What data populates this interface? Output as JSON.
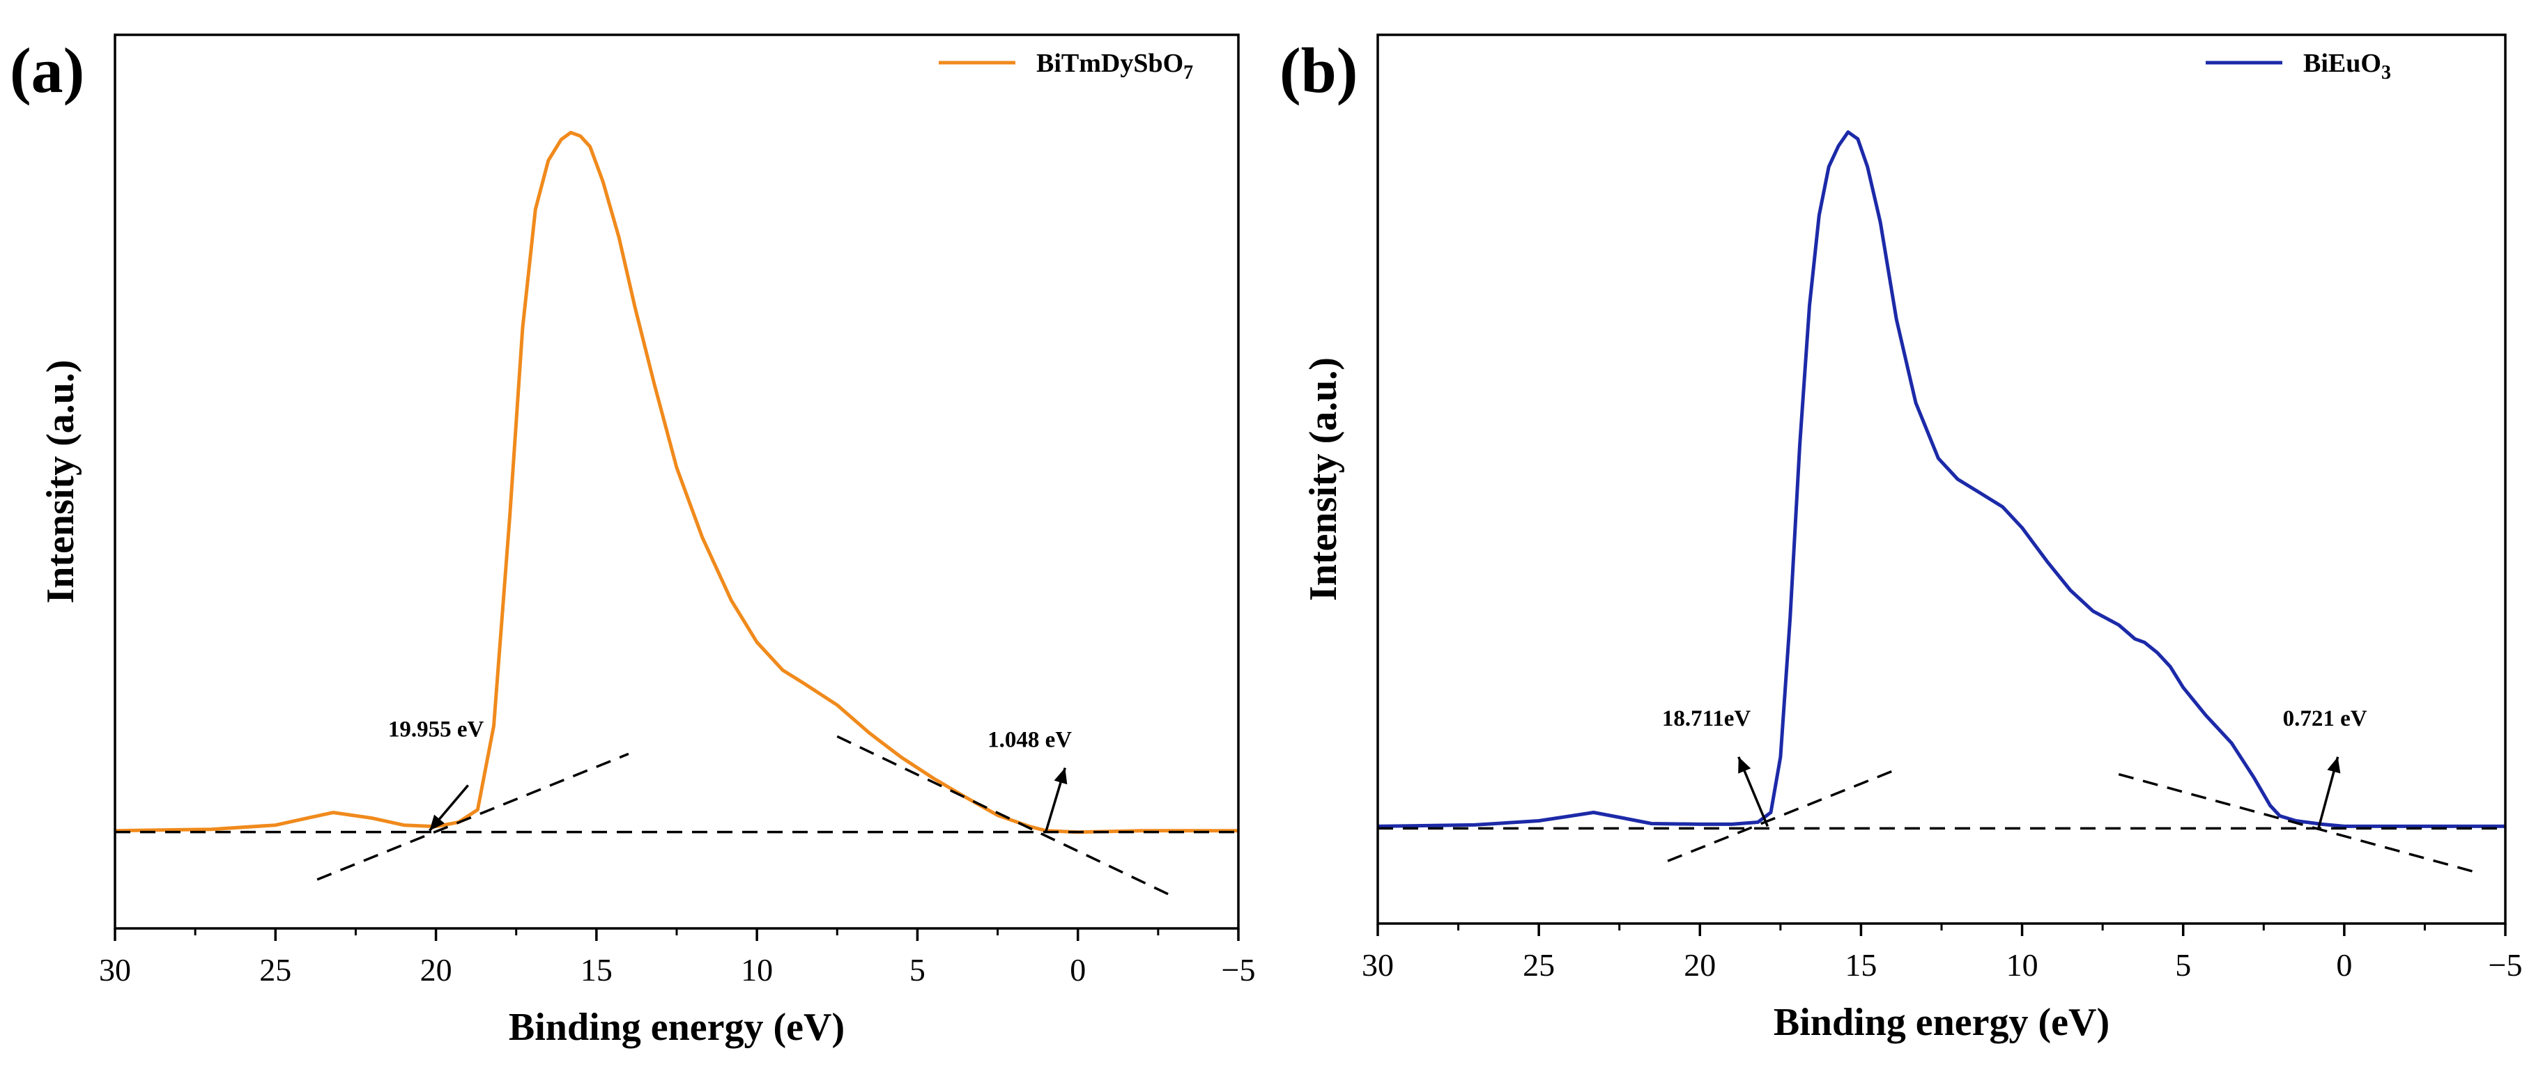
{
  "chart_data": [
    {
      "type": "line",
      "panel_label": "(a)",
      "xlabel": "Binding energy (eV)",
      "ylabel": "Intensity (a.u.)",
      "xlim": [
        30,
        -5
      ],
      "ylim": [
        -0.14,
        1.14
      ],
      "x_ticks": [
        30,
        25,
        20,
        15,
        10,
        5,
        0,
        -5
      ],
      "x_tick_labels": [
        "30",
        "25",
        "20",
        "15",
        "10",
        "5",
        "0",
        "−5"
      ],
      "legend": {
        "label": "BiTmDySbO",
        "subscript": "7",
        "position": "top-right"
      },
      "series": [
        {
          "name": "BiTmDySbO7",
          "color": "#f08a1c",
          "x": [
            30,
            27,
            25,
            24,
            23.2,
            22,
            21,
            20,
            19.3,
            18.7,
            18.2,
            17.7,
            17.3,
            16.9,
            16.5,
            16.1,
            15.8,
            15.5,
            15.2,
            14.8,
            14.3,
            13.8,
            13.2,
            12.5,
            11.7,
            10.8,
            10,
            9.2,
            8.5,
            7.5,
            6.5,
            5.5,
            4.5,
            3.5,
            2.5,
            1.5,
            1,
            0,
            -2,
            -5
          ],
          "y": [
            0.0,
            0.002,
            0.008,
            0.018,
            0.026,
            0.018,
            0.008,
            0.006,
            0.012,
            0.03,
            0.15,
            0.45,
            0.72,
            0.89,
            0.96,
            0.99,
            1.0,
            0.995,
            0.98,
            0.93,
            0.85,
            0.75,
            0.64,
            0.52,
            0.42,
            0.33,
            0.27,
            0.23,
            0.21,
            0.18,
            0.14,
            0.105,
            0.075,
            0.048,
            0.022,
            0.006,
            0.0,
            -0.002,
            0.0,
            0.0
          ]
        }
      ],
      "tangents": [
        {
          "from": [
            23.7,
            -0.07
          ],
          "to": [
            14,
            0.11
          ]
        },
        {
          "from": [
            7.5,
            0.135
          ],
          "to": [
            -3,
            -0.095
          ]
        },
        {
          "from": [
            30,
            -0.002
          ],
          "to": [
            -5,
            -0.002
          ]
        }
      ],
      "annotations": [
        {
          "text": "19.955 eV",
          "label_at": [
            20,
            0.135
          ],
          "arrow_from": [
            19,
            0.065
          ],
          "arrow_to": [
            20.2,
            0.0
          ]
        },
        {
          "text": "1.048 eV",
          "label_at": [
            1.5,
            0.12
          ],
          "arrow_from": [
            1.0,
            -0.002
          ],
          "arrow_to": [
            0.4,
            0.09
          ]
        }
      ]
    },
    {
      "type": "line",
      "panel_label": "(b)",
      "xlabel": "Binding energy (eV)",
      "ylabel": "Intensity (a.u.)",
      "xlim": [
        30,
        -5
      ],
      "ylim": [
        -0.14,
        1.14
      ],
      "x_ticks": [
        30,
        25,
        20,
        15,
        10,
        5,
        0,
        -5
      ],
      "x_tick_labels": [
        "30",
        "25",
        "20",
        "15",
        "10",
        "5",
        "0",
        "−5"
      ],
      "legend": {
        "label": "BiEuO",
        "subscript": "3",
        "position": "top-right"
      },
      "series": [
        {
          "name": "BiEuO3",
          "color": "#1c2aa8",
          "x": [
            30,
            27,
            25,
            24,
            23.3,
            22.5,
            21.5,
            20,
            19,
            18.2,
            17.8,
            17.5,
            17.2,
            16.9,
            16.6,
            16.3,
            16,
            15.7,
            15.4,
            15.1,
            14.8,
            14.4,
            13.9,
            13.3,
            12.6,
            12,
            11.3,
            10.6,
            10,
            9.2,
            8.5,
            7.8,
            7,
            6.5,
            6.2,
            5.8,
            5.4,
            5,
            4.3,
            3.5,
            2.8,
            2.3,
            2,
            1.5,
            0.7,
            0,
            -2,
            -5
          ],
          "y": [
            0.0,
            0.002,
            0.008,
            0.015,
            0.02,
            0.013,
            0.004,
            0.003,
            0.003,
            0.006,
            0.02,
            0.1,
            0.3,
            0.55,
            0.75,
            0.88,
            0.95,
            0.98,
            1.0,
            0.99,
            0.95,
            0.87,
            0.73,
            0.61,
            0.53,
            0.5,
            0.48,
            0.46,
            0.43,
            0.38,
            0.34,
            0.31,
            0.29,
            0.27,
            0.265,
            0.25,
            0.23,
            0.2,
            0.16,
            0.12,
            0.07,
            0.03,
            0.015,
            0.008,
            0.003,
            0.0,
            0.0,
            0.0
          ]
        }
      ],
      "tangents": [
        {
          "from": [
            21,
            -0.05
          ],
          "to": [
            14,
            0.08
          ]
        },
        {
          "from": [
            7,
            0.075
          ],
          "to": [
            -4,
            -0.065
          ]
        },
        {
          "from": [
            30,
            -0.003
          ],
          "to": [
            -5,
            -0.003
          ]
        }
      ],
      "annotations": [
        {
          "text": "18.711eV",
          "label_at": [
            19.8,
            0.145
          ],
          "arrow_from": [
            17.9,
            0.0
          ],
          "arrow_to": [
            18.8,
            0.1
          ]
        },
        {
          "text": "0.721 eV",
          "label_at": [
            0.6,
            0.145
          ],
          "arrow_from": [
            0.8,
            -0.003
          ],
          "arrow_to": [
            0.2,
            0.1
          ]
        }
      ]
    }
  ]
}
